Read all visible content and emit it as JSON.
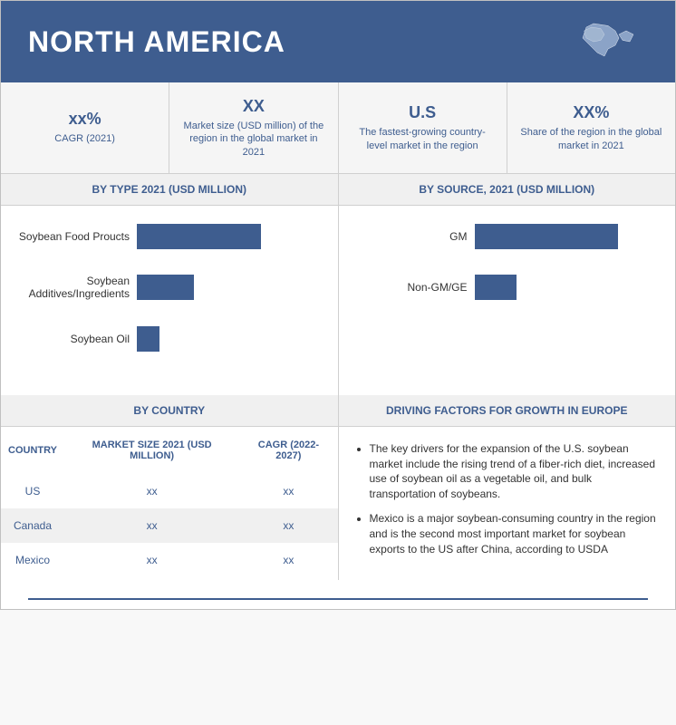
{
  "header": {
    "title": "NORTH AMERICA",
    "map_icon": "north-america-map"
  },
  "stats": [
    {
      "value": "xx%",
      "label": "CAGR (2021)"
    },
    {
      "value": "XX",
      "label": "Market size (USD million) of the region in the global market in 2021"
    },
    {
      "value": "U.S",
      "label": "The fastest-growing country-level market in the region"
    },
    {
      "value": "XX%",
      "label": "Share of the region in the global market in 2021"
    }
  ],
  "chart_type": {
    "title": "BY TYPE 2021 (USD MILLION)",
    "type": "bar",
    "orientation": "horizontal",
    "bar_color": "#3e5d8f",
    "background_color": "#ffffff",
    "label_fontsize": 12,
    "xlim": [
      0,
      100
    ],
    "bars": [
      {
        "label": "Soybean Food Proucts",
        "value": 65
      },
      {
        "label": "Soybean Additives/Ingredients",
        "value": 30
      },
      {
        "label": "Soybean Oil",
        "value": 12
      }
    ]
  },
  "chart_source": {
    "title": "BY SOURCE, 2021 (USD MILLION)",
    "type": "bar",
    "orientation": "horizontal",
    "bar_color": "#3e5d8f",
    "background_color": "#ffffff",
    "label_fontsize": 12,
    "xlim": [
      0,
      100
    ],
    "bars": [
      {
        "label": "GM",
        "value": 75
      },
      {
        "label": "Non-GM/GE",
        "value": 22
      }
    ]
  },
  "country_section": {
    "title": "BY COUNTRY",
    "columns": [
      "COUNTRY",
      "MARKET SIZE 2021 (USD MILLION)",
      "CAGR (2022-2027)"
    ],
    "rows": [
      [
        "US",
        "xx",
        "xx"
      ],
      [
        "Canada",
        "xx",
        "xx"
      ],
      [
        "Mexico",
        "xx",
        "xx"
      ]
    ],
    "header_color": "#3e5d8f",
    "alt_row_color": "#f0f0f0"
  },
  "factors_section": {
    "title": "DRIVING FACTORS FOR GROWTH IN EUROPE",
    "bullets": [
      "The key drivers for the expansion of the U.S. soybean market include the rising trend of a fiber-rich diet, increased use of soybean oil as a vegetable oil, and bulk transportation of soybeans.",
      "Mexico is a major soybean-consuming country in the region and is the second most important market for soybean exports to the US after China, according to USDA"
    ]
  },
  "colors": {
    "primary": "#3e5d8f",
    "header_bg": "#3e5d8f",
    "card_bg": "#f5f5f5",
    "section_header_bg": "#f0f0f0",
    "border": "#d0d0d0"
  }
}
